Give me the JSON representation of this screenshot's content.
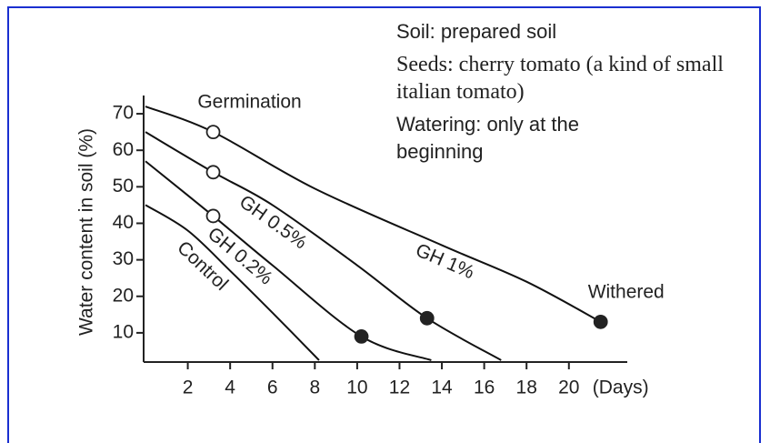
{
  "chart_data": {
    "type": "line",
    "ylabel": "Water content in soil (%)",
    "xlabel": "(Days)",
    "xlim": [
      0,
      22.5
    ],
    "ylim": [
      2,
      75
    ],
    "xticks": [
      2,
      4,
      6,
      8,
      10,
      12,
      14,
      16,
      18,
      20
    ],
    "yticks": [
      10,
      20,
      30,
      40,
      50,
      60,
      70
    ],
    "series": [
      {
        "name": "GH 1%",
        "color": "#111111",
        "x": [
          0,
          3.2,
          8,
          14,
          18,
          21.5
        ],
        "values": [
          72,
          65,
          49.5,
          34,
          24,
          13
        ]
      },
      {
        "name": "GH 0.5%",
        "color": "#111111",
        "x": [
          0,
          3.2,
          6,
          10,
          13.3,
          16.8
        ],
        "values": [
          65,
          54,
          45,
          28.5,
          14,
          2.5
        ]
      },
      {
        "name": "GH 0.2%",
        "color": "#111111",
        "x": [
          0,
          3.2,
          6,
          10.2,
          13.5
        ],
        "values": [
          57,
          42,
          28.5,
          9,
          2.5
        ]
      },
      {
        "name": "Control",
        "color": "#111111",
        "x": [
          0,
          2,
          4,
          6,
          8.2
        ],
        "values": [
          45,
          38,
          27,
          15.5,
          2.5
        ]
      }
    ],
    "points": [
      {
        "name": "Germination",
        "marker": "open",
        "x": [
          3.2,
          3.2,
          3.2
        ],
        "values": [
          65,
          54,
          42
        ]
      },
      {
        "name": "Withered",
        "marker": "filled",
        "x": [
          10.2,
          13.3,
          21.5
        ],
        "values": [
          9,
          14,
          13
        ]
      }
    ],
    "notes": [
      "Soil: prepared soil",
      "Seeds: cherry tomato (a kind of small italian tomato)",
      "Watering: only at the beginning"
    ]
  }
}
